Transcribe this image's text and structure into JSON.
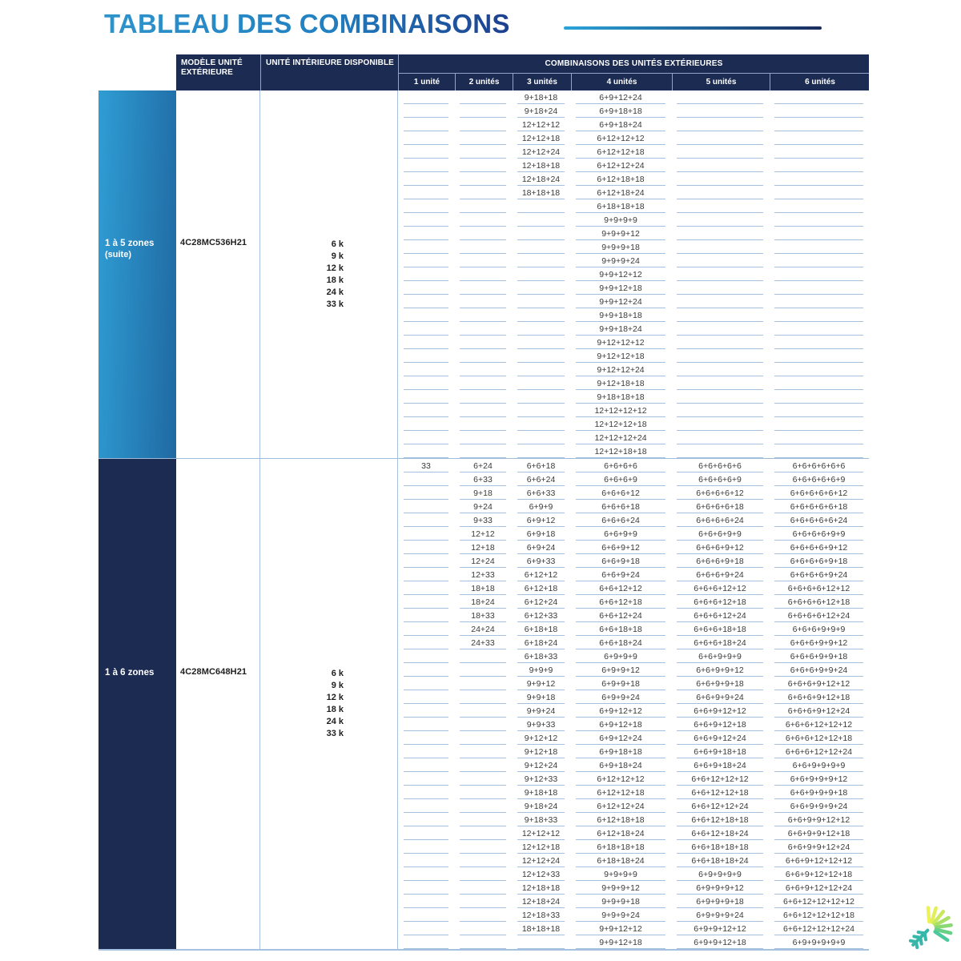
{
  "title": "TABLEAU DES COMBINAISONS",
  "colors": {
    "header_navy": "#1b2b52",
    "zone_gradient_start": "#2f9dd4",
    "zone_gradient_end": "#2069a2",
    "zone_navy": "#1b2b52",
    "row_line_blue": "#a6c1df",
    "title_blue_start": "#2e93cb",
    "title_blue_end": "#1d3f8e",
    "cell_text": "#3b3b3d"
  },
  "logo": {
    "name": "snowflake-sun-logo",
    "snow_color": "#35b7a9",
    "ray_colors": [
      "#eef259",
      "#e3ee59",
      "#c9e95f",
      "#a9e067",
      "#88d973",
      "#67d186",
      "#4cc99c"
    ]
  },
  "table": {
    "headers": {
      "model": "MODÈLE UNITÉ EXTÉRIEURE",
      "indoor": "UNITÉ INTÉRIEURE DISPONIBLE",
      "combos": "COMBINAISONS DES UNITÉS EXTÉRIEURES",
      "unit_cols": [
        "1 unité",
        "2 unités",
        "3 unités",
        "4 unités",
        "5 unités",
        "6 unités"
      ]
    },
    "sections": [
      {
        "zone_label": "1 à 5 zones",
        "zone_sublabel": "(suite)",
        "zone_style": "gradient",
        "model": "4C28MC536H21",
        "indoor_units": [
          "6 k",
          "9 k",
          "12 k",
          "18 k",
          "24 k",
          "33 k"
        ],
        "row_count": 27,
        "combos": {
          "u1": [],
          "u2": [],
          "u3": [
            "9+18+18",
            "9+18+24",
            "12+12+12",
            "12+12+18",
            "12+12+24",
            "12+18+18",
            "12+18+24",
            "18+18+18"
          ],
          "u4": [
            "6+9+12+24",
            "6+9+18+18",
            "6+9+18+24",
            "6+12+12+12",
            "6+12+12+18",
            "6+12+12+24",
            "6+12+18+18",
            "6+12+18+24",
            "6+18+18+18",
            "9+9+9+9",
            "9+9+9+12",
            "9+9+9+18",
            "9+9+9+24",
            "9+9+12+12",
            "9+9+12+18",
            "9+9+12+24",
            "9+9+18+18",
            "9+9+18+24",
            "9+12+12+12",
            "9+12+12+18",
            "9+12+12+24",
            "9+12+18+18",
            "9+18+18+18",
            "12+12+12+12",
            "12+12+12+18",
            "12+12+12+24",
            "12+12+18+18"
          ],
          "u5": [],
          "u6": []
        }
      },
      {
        "zone_label": "1 à 6 zones",
        "zone_sublabel": "",
        "zone_style": "navy",
        "model": "4C28MC648H21",
        "indoor_units": [
          "6 k",
          "9 k",
          "12 k",
          "18 k",
          "24 k",
          "33 k"
        ],
        "row_count": 36,
        "combos": {
          "u1": [
            "33"
          ],
          "u2": [
            "6+24",
            "6+33",
            "9+18",
            "9+24",
            "9+33",
            "12+12",
            "12+18",
            "12+24",
            "12+33",
            "18+18",
            "18+24",
            "18+33",
            "24+24",
            "24+33"
          ],
          "u3": [
            "6+6+18",
            "6+6+24",
            "6+6+33",
            "6+9+9",
            "6+9+12",
            "6+9+18",
            "6+9+24",
            "6+9+33",
            "6+12+12",
            "6+12+18",
            "6+12+24",
            "6+12+33",
            "6+18+18",
            "6+18+24",
            "6+18+33",
            "9+9+9",
            "9+9+12",
            "9+9+18",
            "9+9+24",
            "9+9+33",
            "9+12+12",
            "9+12+18",
            "9+12+24",
            "9+12+33",
            "9+18+18",
            "9+18+24",
            "9+18+33",
            "12+12+12",
            "12+12+18",
            "12+12+24",
            "12+12+33",
            "12+18+18",
            "12+18+24",
            "12+18+33",
            "18+18+18"
          ],
          "u4": [
            "6+6+6+6",
            "6+6+6+9",
            "6+6+6+12",
            "6+6+6+18",
            "6+6+6+24",
            "6+6+9+9",
            "6+6+9+12",
            "6+6+9+18",
            "6+6+9+24",
            "6+6+12+12",
            "6+6+12+18",
            "6+6+12+24",
            "6+6+18+18",
            "6+6+18+24",
            "6+9+9+9",
            "6+9+9+12",
            "6+9+9+18",
            "6+9+9+24",
            "6+9+12+12",
            "6+9+12+18",
            "6+9+12+24",
            "6+9+18+18",
            "6+9+18+24",
            "6+12+12+12",
            "6+12+12+18",
            "6+12+12+24",
            "6+12+18+18",
            "6+12+18+24",
            "6+18+18+18",
            "6+18+18+24",
            "9+9+9+9",
            "9+9+9+12",
            "9+9+9+18",
            "9+9+9+24",
            "9+9+12+12",
            "9+9+12+18"
          ],
          "u5": [
            "6+6+6+6+6",
            "6+6+6+6+9",
            "6+6+6+6+12",
            "6+6+6+6+18",
            "6+6+6+6+24",
            "6+6+6+9+9",
            "6+6+6+9+12",
            "6+6+6+9+18",
            "6+6+6+9+24",
            "6+6+6+12+12",
            "6+6+6+12+18",
            "6+6+6+12+24",
            "6+6+6+18+18",
            "6+6+6+18+24",
            "6+6+9+9+9",
            "6+6+9+9+12",
            "6+6+9+9+18",
            "6+6+9+9+24",
            "6+6+9+12+12",
            "6+6+9+12+18",
            "6+6+9+12+24",
            "6+6+9+18+18",
            "6+6+9+18+24",
            "6+6+12+12+12",
            "6+6+12+12+18",
            "6+6+12+12+24",
            "6+6+12+18+18",
            "6+6+12+18+24",
            "6+6+18+18+18",
            "6+6+18+18+24",
            "6+9+9+9+9",
            "6+9+9+9+12",
            "6+9+9+9+18",
            "6+9+9+9+24",
            "6+9+9+12+12",
            "6+9+9+12+18"
          ],
          "u6": [
            "6+6+6+6+6+6",
            "6+6+6+6+6+9",
            "6+6+6+6+6+12",
            "6+6+6+6+6+18",
            "6+6+6+6+6+24",
            "6+6+6+6+9+9",
            "6+6+6+6+9+12",
            "6+6+6+6+9+18",
            "6+6+6+6+9+24",
            "6+6+6+6+12+12",
            "6+6+6+6+12+18",
            "6+6+6+6+12+24",
            "6+6+6+9+9+9",
            "6+6+6+9+9+12",
            "6+6+6+9+9+18",
            "6+6+6+9+9+24",
            "6+6+6+9+12+12",
            "6+6+6+9+12+18",
            "6+6+6+9+12+24",
            "6+6+6+12+12+12",
            "6+6+6+12+12+18",
            "6+6+6+12+12+24",
            "6+6+9+9+9+9",
            "6+6+9+9+9+12",
            "6+6+9+9+9+18",
            "6+6+9+9+9+24",
            "6+6+9+9+12+12",
            "6+6+9+9+12+18",
            "6+6+9+9+12+24",
            "6+6+9+12+12+12",
            "6+6+9+12+12+18",
            "6+6+9+12+12+24",
            "6+6+12+12+12+12",
            "6+6+12+12+12+18",
            "6+6+12+12+12+24",
            "6+9+9+9+9+9"
          ]
        }
      }
    ]
  }
}
